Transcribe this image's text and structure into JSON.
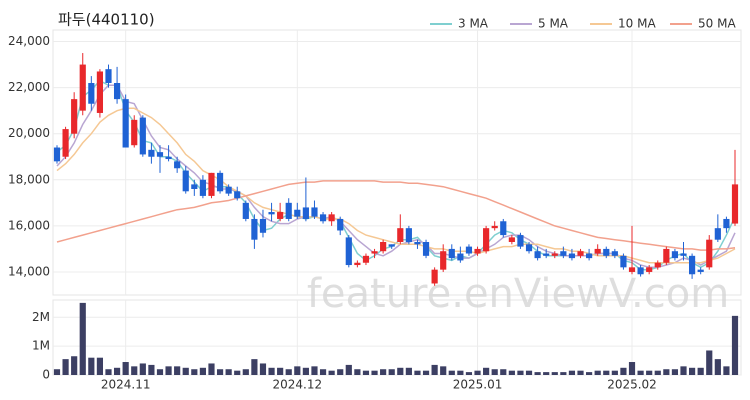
{
  "chart_data": {
    "type": "candlestick",
    "title": "파두(440110)",
    "watermark": "feature.enViewV.com",
    "categories": [
      null,
      null,
      null,
      null,
      null,
      null,
      null,
      null,
      "2024.11",
      null,
      null,
      null,
      null,
      null,
      null,
      null,
      null,
      null,
      null,
      null,
      null,
      null,
      null,
      null,
      null,
      null,
      null,
      null,
      "2024.12",
      null,
      null,
      null,
      null,
      null,
      null,
      null,
      null,
      null,
      null,
      null,
      null,
      null,
      null,
      null,
      null,
      null,
      null,
      null,
      null,
      "2025.01",
      null,
      null,
      null,
      null,
      null,
      null,
      null,
      null,
      null,
      null,
      null,
      null,
      null,
      null,
      null,
      null,
      null,
      "2025.02",
      null,
      null,
      null,
      null,
      null,
      null,
      null,
      null,
      null,
      null,
      null,
      null
    ],
    "open": [
      19400,
      19000,
      20000,
      21000,
      22200,
      20900,
      22800,
      22200,
      21500,
      19500,
      20700,
      19300,
      19200,
      19000,
      18800,
      18400,
      17800,
      18000,
      17300,
      18300,
      17700,
      17500,
      17000,
      16300,
      16300,
      16600,
      16300,
      17000,
      16700,
      16800,
      16800,
      16500,
      16200,
      16300,
      15500,
      14300,
      14400,
      14800,
      14900,
      15200,
      15300,
      15900,
      15300,
      15300,
      13500,
      14100,
      15000,
      14800,
      15100,
      14800,
      14900,
      15900,
      16200,
      15300,
      15600,
      15200,
      14900,
      14800,
      14700,
      14900,
      14800,
      14700,
      14800,
      14800,
      15000,
      14900,
      14700,
      14000,
      14200,
      14000,
      14200,
      14400,
      14900,
      14800,
      14700,
      14100,
      14200,
      15900,
      16300,
      16100
    ],
    "high": [
      19500,
      20300,
      21800,
      23500,
      22500,
      22800,
      23000,
      22900,
      21700,
      20800,
      20800,
      19600,
      19500,
      19500,
      19000,
      18600,
      18000,
      18200,
      18300,
      18400,
      17800,
      17700,
      17100,
      16500,
      16700,
      17000,
      17000,
      17200,
      17000,
      18100,
      17100,
      16600,
      16600,
      16400,
      15600,
      14500,
      14800,
      15000,
      15400,
      15200,
      16500,
      16000,
      15400,
      15400,
      14200,
      15200,
      15200,
      15100,
      15200,
      15100,
      16000,
      16200,
      16300,
      15600,
      15700,
      15300,
      15100,
      15000,
      14900,
      15100,
      15000,
      15000,
      15000,
      15200,
      15100,
      15000,
      14800,
      16000,
      14300,
      14300,
      14500,
      15100,
      15000,
      15300,
      14800,
      14200,
      15600,
      16500,
      16400,
      19300
    ],
    "low": [
      18700,
      18900,
      19800,
      20800,
      21000,
      20700,
      22000,
      21300,
      19400,
      19400,
      19000,
      18700,
      18300,
      18800,
      18300,
      17400,
      17300,
      17200,
      17200,
      17400,
      17300,
      17100,
      16200,
      15000,
      15500,
      16200,
      16200,
      16200,
      16300,
      16200,
      16300,
      16100,
      16000,
      15600,
      14200,
      14200,
      14300,
      14600,
      14800,
      15000,
      15200,
      15200,
      15000,
      14600,
      13400,
      14000,
      14500,
      14400,
      14700,
      14700,
      14800,
      15800,
      15500,
      15200,
      15000,
      14800,
      14500,
      14600,
      14600,
      14600,
      14500,
      14600,
      14500,
      14700,
      14600,
      14600,
      14100,
      13900,
      13800,
      13900,
      14100,
      14300,
      14500,
      14500,
      13700,
      13900,
      14100,
      15300,
      15700,
      16000
    ],
    "close": [
      18800,
      20200,
      21500,
      23000,
      21300,
      22700,
      22200,
      21500,
      19400,
      20600,
      19100,
      19000,
      19000,
      18900,
      18500,
      17500,
      17600,
      17300,
      18300,
      17500,
      17400,
      17200,
      16300,
      15400,
      15700,
      16500,
      16600,
      16300,
      16400,
      16300,
      16400,
      16200,
      16500,
      15800,
      14300,
      14400,
      14700,
      14900,
      15300,
      15100,
      15900,
      15300,
      15200,
      14700,
      14100,
      14900,
      14600,
      14500,
      14800,
      15000,
      15900,
      16000,
      15600,
      15500,
      15100,
      14900,
      14600,
      14700,
      14800,
      14700,
      14600,
      14900,
      14600,
      15000,
      14700,
      14700,
      14200,
      14200,
      13900,
      14200,
      14400,
      15000,
      14600,
      14700,
      13900,
      14000,
      15400,
      15400,
      15900,
      17800
    ],
    "volume": [
      200000,
      550000,
      650000,
      2500000,
      600000,
      600000,
      200000,
      250000,
      450000,
      300000,
      400000,
      350000,
      200000,
      300000,
      300000,
      250000,
      200000,
      250000,
      400000,
      200000,
      200000,
      150000,
      200000,
      550000,
      400000,
      250000,
      250000,
      200000,
      300000,
      250000,
      300000,
      200000,
      150000,
      200000,
      350000,
      200000,
      150000,
      150000,
      200000,
      200000,
      250000,
      250000,
      150000,
      150000,
      350000,
      300000,
      150000,
      150000,
      100000,
      150000,
      250000,
      200000,
      200000,
      150000,
      150000,
      150000,
      100000,
      100000,
      100000,
      100000,
      150000,
      150000,
      100000,
      150000,
      150000,
      150000,
      250000,
      450000,
      150000,
      150000,
      150000,
      200000,
      200000,
      300000,
      250000,
      250000,
      850000,
      550000,
      300000,
      2050000
    ],
    "up_color": "#e8282b",
    "down_color": "#1f62d4",
    "volume_color": "#3c3f63",
    "ma": [
      {
        "name": "3 MA",
        "color": "#7fcfd0",
        "values": [
          19200,
          19500,
          20200,
          21600,
          21900,
          22300,
          22100,
          22100,
          21000,
          20500,
          19700,
          19600,
          19000,
          19000,
          18800,
          18300,
          17900,
          17500,
          17700,
          17700,
          17700,
          17400,
          17000,
          16300,
          15800,
          15900,
          16300,
          16500,
          16400,
          16300,
          16400,
          16300,
          16400,
          16200,
          15500,
          14800,
          14500,
          14700,
          15000,
          15100,
          15400,
          15400,
          15500,
          15100,
          14700,
          14600,
          14500,
          14700,
          14600,
          14800,
          15200,
          15600,
          15800,
          15700,
          15400,
          15200,
          14900,
          14700,
          14700,
          14700,
          14700,
          14700,
          14700,
          14800,
          14800,
          14800,
          14500,
          14400,
          14100,
          14100,
          14200,
          14500,
          14700,
          14800,
          14400,
          14200,
          14400,
          14900,
          15600,
          16400
        ]
      },
      {
        "name": "5 MA",
        "color": "#b9a6d2",
        "values": [
          18600,
          19000,
          19600,
          20400,
          21000,
          21700,
          22100,
          22100,
          21400,
          21300,
          20600,
          19900,
          19400,
          19300,
          18900,
          18600,
          18300,
          17900,
          17800,
          17600,
          17600,
          17500,
          17300,
          16800,
          16400,
          16200,
          16100,
          16100,
          16300,
          16400,
          16400,
          16300,
          16400,
          16200,
          15800,
          15400,
          15100,
          14800,
          14700,
          14900,
          15200,
          15300,
          15400,
          15200,
          14800,
          14800,
          14700,
          14600,
          14600,
          14800,
          15000,
          15200,
          15500,
          15600,
          15600,
          15400,
          15100,
          14900,
          14800,
          14700,
          14700,
          14700,
          14700,
          14800,
          14800,
          14800,
          14600,
          14500,
          14300,
          14200,
          14200,
          14300,
          14400,
          14600,
          14500,
          14300,
          14500,
          14700,
          14900,
          15700
        ]
      },
      {
        "name": "10 MA",
        "color": "#f5c894",
        "values": [
          18400,
          18700,
          19100,
          19600,
          20000,
          20500,
          20800,
          21000,
          21100,
          21100,
          20900,
          20700,
          20400,
          20000,
          19600,
          19100,
          18800,
          18400,
          18200,
          18000,
          17700,
          17500,
          17300,
          17000,
          16800,
          16700,
          16600,
          16500,
          16400,
          16400,
          16400,
          16300,
          16300,
          16300,
          16100,
          15800,
          15600,
          15500,
          15400,
          15300,
          15200,
          15200,
          15200,
          15100,
          15000,
          15000,
          14900,
          14900,
          14900,
          14800,
          14900,
          15000,
          15100,
          15100,
          15200,
          15200,
          15200,
          15100,
          15000,
          15000,
          14900,
          14900,
          14800,
          14700,
          14700,
          14700,
          14700,
          14600,
          14500,
          14400,
          14400,
          14400,
          14400,
          14400,
          14400,
          14400,
          14500,
          14600,
          14800,
          15000
        ]
      },
      {
        "name": "50 MA",
        "color": "#f2a18d",
        "values": [
          15300,
          15400,
          15500,
          15600,
          15700,
          15800,
          15900,
          16000,
          16100,
          16200,
          16300,
          16400,
          16500,
          16600,
          16700,
          16750,
          16800,
          16900,
          17000,
          17050,
          17100,
          17200,
          17300,
          17400,
          17500,
          17600,
          17700,
          17800,
          17850,
          17900,
          17900,
          17950,
          17950,
          17950,
          17950,
          17950,
          17950,
          17950,
          17900,
          17900,
          17900,
          17850,
          17850,
          17800,
          17750,
          17700,
          17600,
          17500,
          17400,
          17300,
          17200,
          17050,
          16900,
          16750,
          16600,
          16450,
          16300,
          16150,
          16000,
          15900,
          15800,
          15700,
          15600,
          15500,
          15450,
          15400,
          15350,
          15300,
          15250,
          15200,
          15150,
          15100,
          15050,
          15000,
          15000,
          14950,
          14950,
          15000,
          15000,
          15050
        ]
      }
    ],
    "ylim": [
      13000,
      24500
    ],
    "yticks": [
      {
        "value": 14000,
        "label": "14,000"
      },
      {
        "value": 16000,
        "label": "16,000"
      },
      {
        "value": 18000,
        "label": "18,000"
      },
      {
        "value": 20000,
        "label": "20,000"
      },
      {
        "value": 22000,
        "label": "22,000"
      },
      {
        "value": 24000,
        "label": "24,000"
      }
    ],
    "y2lim": [
      0,
      2600000
    ],
    "y2ticks": [
      0,
      {
        "value": 1000000,
        "label": "1M"
      },
      {
        "value": 2000000,
        "label": "2M"
      }
    ],
    "grid": true
  }
}
